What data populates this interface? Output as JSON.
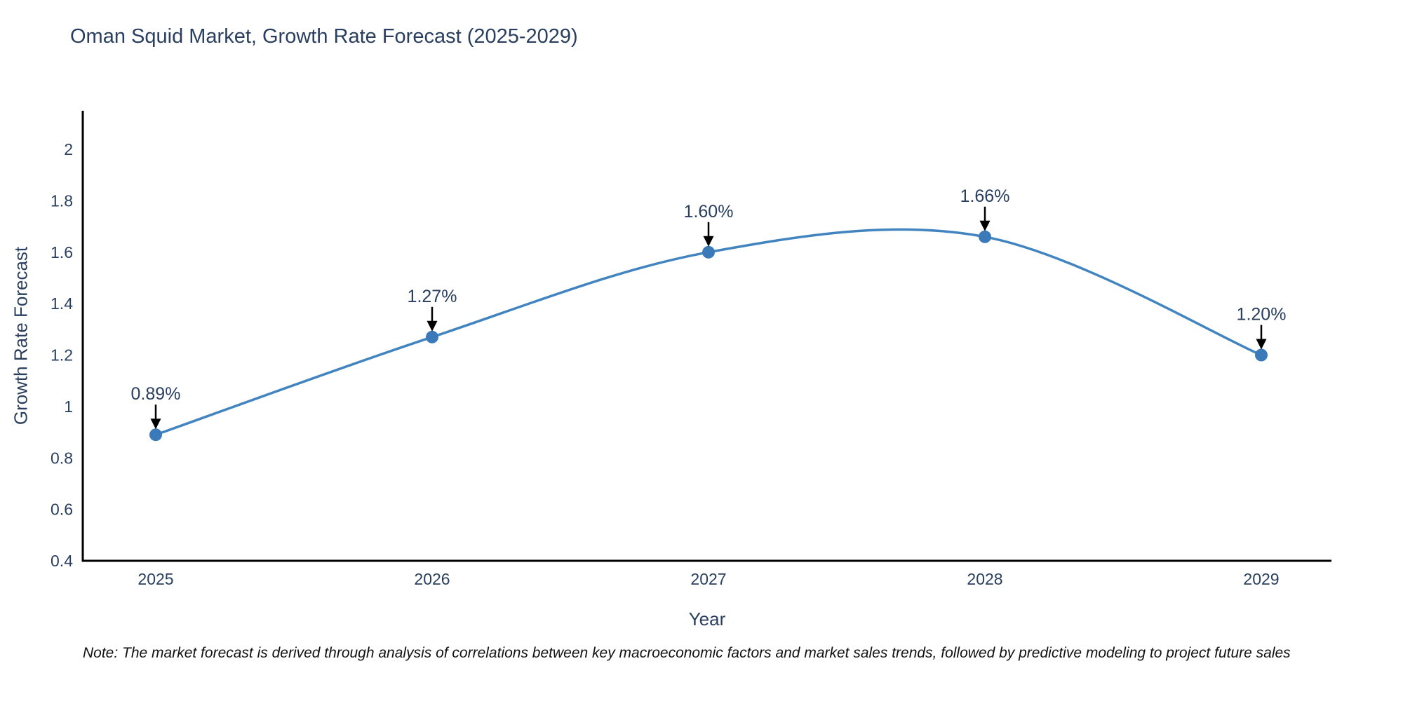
{
  "title": "Oman Squid Market, Growth Rate Forecast (2025-2029)",
  "footnote": "Note: The market forecast is derived through analysis of correlations between key macroeconomic factors and market sales trends, followed by predictive modeling to project future sales",
  "chart_data": {
    "type": "line",
    "line_shape": "spline",
    "title": "Oman Squid Market, Growth Rate Forecast (2025-2029)",
    "xlabel": "Year",
    "ylabel": "Growth Rate Forecast",
    "x": [
      2025,
      2026,
      2027,
      2028,
      2029
    ],
    "series": [
      {
        "name": "Growth Rate Forecast",
        "values": [
          0.89,
          1.27,
          1.6,
          1.66,
          1.2
        ]
      }
    ],
    "point_labels": [
      "0.89%",
      "1.27%",
      "1.60%",
      "1.66%",
      "1.20%"
    ],
    "yticks": [
      0.4,
      0.6,
      0.8,
      1,
      1.2,
      1.4,
      1.6,
      1.8,
      2
    ],
    "ylim": [
      0.4,
      2.15
    ],
    "grid": false,
    "legend": "none",
    "colors": {
      "line": "#4184c0",
      "marker": "#3a7ab8",
      "axis_line": "#000000",
      "tick_text": "#2a3f5f",
      "annotation_text": "#2a3f5f",
      "annotation_arrow": "#000000"
    }
  }
}
